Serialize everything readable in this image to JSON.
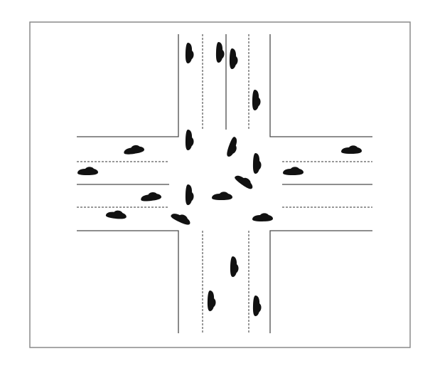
{
  "colors": {
    "background": "#ffffff",
    "frame": "#8a8a8a",
    "road_edge": "#4a4a4a",
    "lane_divider": "#333333",
    "vehicle": "#111111"
  },
  "legend": [],
  "vehicles": [
    {
      "id": "n-in-1",
      "approach": "north",
      "heading": "southbound"
    },
    {
      "id": "n-in-2",
      "approach": "north",
      "heading": "southbound"
    },
    {
      "id": "n-in-3",
      "approach": "north",
      "heading": "southbound"
    },
    {
      "id": "n-out-1",
      "approach": "north",
      "heading": "northbound"
    },
    {
      "id": "c-1",
      "approach": "center",
      "heading": "southbound"
    },
    {
      "id": "c-2",
      "approach": "center",
      "heading": "turning"
    },
    {
      "id": "c-3",
      "approach": "center",
      "heading": "northbound"
    },
    {
      "id": "c-4",
      "approach": "center",
      "heading": "turning"
    },
    {
      "id": "c-5",
      "approach": "center",
      "heading": "southbound"
    },
    {
      "id": "c-6",
      "approach": "center",
      "heading": "westbound"
    },
    {
      "id": "c-7",
      "approach": "center",
      "heading": "turning"
    },
    {
      "id": "c-8",
      "approach": "center",
      "heading": "westbound"
    },
    {
      "id": "w-1",
      "approach": "west",
      "heading": "eastbound"
    },
    {
      "id": "w-2",
      "approach": "west",
      "heading": "westbound"
    },
    {
      "id": "w-3",
      "approach": "west",
      "heading": "eastbound"
    },
    {
      "id": "w-4",
      "approach": "west",
      "heading": "eastbound"
    },
    {
      "id": "e-1",
      "approach": "east",
      "heading": "westbound"
    },
    {
      "id": "e-2",
      "approach": "east",
      "heading": "westbound"
    },
    {
      "id": "s-1",
      "approach": "south",
      "heading": "northbound"
    },
    {
      "id": "s-2",
      "approach": "south",
      "heading": "southbound"
    },
    {
      "id": "s-3",
      "approach": "south",
      "heading": "northbound"
    }
  ]
}
